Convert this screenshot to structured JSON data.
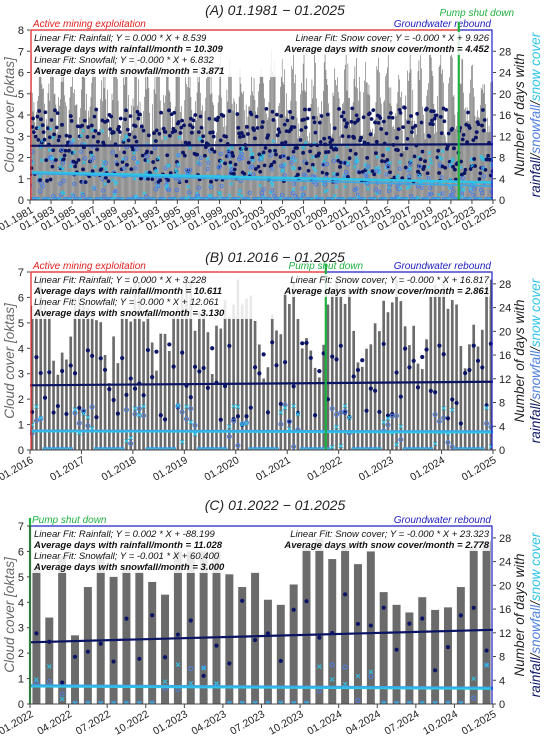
{
  "y2_label": {
    "pre": "Number of days with",
    "rain": "rainfall",
    "sep1": "/",
    "snowfall": "snowfall",
    "sep2": "/",
    "snowcover": "snow cover"
  },
  "colors": {
    "cloud_bar": "#6b6b6b",
    "rainfall": "#0b1464",
    "snowfall": "#4f7fe0",
    "snow_cover": "#2ec4e8",
    "active_mining": "#e02020",
    "pump_shut": "#20b040",
    "rebound": "#2020c0"
  },
  "chart_data": [
    {
      "type": "bar",
      "title": "(A) 01.1981 − 01.2025",
      "ylabel": "Cloud cover [oktas]",
      "ylim": [
        0,
        8
      ],
      "yticks": [
        0,
        1,
        2,
        3,
        4,
        5,
        6,
        7,
        8
      ],
      "y2lim": [
        0,
        32
      ],
      "y2ticks": [
        0,
        4,
        8,
        12,
        16,
        20,
        24,
        28
      ],
      "xlim": [
        1981.0,
        2025.0
      ],
      "xticks": [
        "01.1981",
        "01.1983",
        "01.1985",
        "01.1987",
        "01.1989",
        "01.1991",
        "01.1993",
        "01.1995",
        "01.1997",
        "01.1999",
        "01.2001",
        "01.2003",
        "01.2005",
        "01.2007",
        "01.2009",
        "01.2011",
        "01.2013",
        "01.2015",
        "01.2017",
        "01.2019",
        "01.2021",
        "01.2023",
        "01.2025"
      ],
      "phases": {
        "active_mining": "Active mining exploitation",
        "pump_shut": "Pump shut down",
        "rebound": "Groundwater rebound",
        "pump_shut_x": 2021.75
      },
      "annotations": {
        "rain_fit": "Linear Fit: Rainfall; Y = 0.000 * X + 8.539",
        "rain_avg": "Average days with rainfall/month = 10.309",
        "snowfall_fit": "Linear Fit: Snowfall; Y = -0.000 * X + 6.832",
        "snowfall_avg": "Average days with snowfall/month = 3.871",
        "snowcover_fit": "Linear Fit: Snow cover; Y = -0.000 * X + 9.926",
        "snowcover_avg": "Average days with snow cover/month = 4.452"
      },
      "series": [
        {
          "name": "Cloud cover",
          "x_start": 1981.0,
          "n_months": 528,
          "mean": 4.8,
          "amplitude": 1.4
        },
        {
          "name": "Rainfall",
          "trend_days": [
            10.2,
            10.5
          ]
        },
        {
          "name": "Snowfall",
          "trend_days": [
            5.0,
            2.6
          ]
        },
        {
          "name": "Snow cover",
          "trend_days": [
            5.2,
            3.3
          ]
        }
      ]
    },
    {
      "type": "bar",
      "title": "(B) 01.2016 − 01.2025",
      "ylabel": "Cloud cover [oktas]",
      "ylim": [
        0,
        7
      ],
      "yticks": [
        0,
        1,
        2,
        3,
        4,
        5,
        6,
        7
      ],
      "y2lim": [
        0,
        30
      ],
      "y2ticks": [
        0,
        4,
        8,
        12,
        16,
        20,
        24,
        28
      ],
      "xlim": [
        2016.0,
        2025.0
      ],
      "xticks": [
        "01.2016",
        "01.2017",
        "01.2018",
        "01.2019",
        "01.2020",
        "01.2021",
        "01.2022",
        "01.2023",
        "01.2024",
        "01.2025"
      ],
      "phases": {
        "active_mining": "Active mining exploitation",
        "pump_shut": "Pump shut down",
        "rebound": "Groundwater rebound",
        "pump_shut_x": 2021.75
      },
      "annotations": {
        "rain_fit": "Linear Fit: Rainfall; Y = 0.000 * X + 3.228",
        "rain_avg": "Average days with rainfall/month = 10.611",
        "snowfall_fit": "Linear Fit: Snowfall; Y = -0.000 * X + 12.061",
        "snowfall_avg": "Average days with snowfall/month = 3.130",
        "snowcover_fit": "Linear Fit: Snow cover; Y = -0.000 * X + 16.817",
        "snowcover_avg": "Average days with snow cover/month = 2.861"
      },
      "series": [
        {
          "name": "Cloud cover",
          "x_start": 2016.0,
          "n_months": 108,
          "mean": 5.0,
          "amplitude": 1.3
        },
        {
          "name": "Rainfall",
          "trend_days": [
            10.9,
            11.5
          ]
        },
        {
          "name": "Snowfall",
          "trend_days": [
            3.3,
            3.2
          ]
        },
        {
          "name": "Snow cover",
          "trend_days": [
            3.2,
            3.0
          ]
        }
      ]
    },
    {
      "type": "bar",
      "title": "(C) 01.2022 − 01.2025",
      "ylabel": "Cloud cover [oktas]",
      "ylim": [
        0,
        7
      ],
      "yticks": [
        0,
        1,
        2,
        3,
        4,
        5,
        6,
        7
      ],
      "y2lim": [
        0,
        30
      ],
      "y2ticks": [
        0,
        4,
        8,
        12,
        16,
        20,
        24,
        28
      ],
      "xlim": [
        2022.0,
        2025.0
      ],
      "xticks": [
        "01.2022",
        "04.2022",
        "07.2022",
        "10.2022",
        "01.2023",
        "04.2023",
        "07.2023",
        "10.2023",
        "01.2024",
        "04.2024",
        "07.2024",
        "10.2024",
        "01.2025"
      ],
      "phases": {
        "pump_shut": "Pump shut down",
        "rebound": "Groundwater rebound",
        "pump_shut_x": 2022.0
      },
      "annotations": {
        "rain_fit": "Linear Fit: Rainfall; Y = 0.002 * X + -88.199",
        "rain_avg": "Average days with rainfall/month = 11.028",
        "snowfall_fit": "Linear Fit: Snowfall; Y = -0.001 * X + 60.400",
        "snowfall_avg": "Average days with snowfall/month = 3.000",
        "snowcover_fit": "Linear Fit: Snow cover; Y = -0.000 * X + 23.323",
        "snowcover_avg": "Average days with snow cover/month = 2.778"
      },
      "series": [
        {
          "name": "Cloud cover",
          "x_start": 2022.0,
          "values": [
            5.3,
            3.4,
            5.8,
            2.7,
            4.6,
            5.8,
            5.0,
            5.4,
            5.2,
            4.8,
            4.3,
            6.0,
            6.0,
            6.0,
            6.0,
            5.1,
            4.6,
            5.2,
            4.1,
            3.9,
            4.7,
            6.2,
            6.5,
            5.7,
            6.2,
            5.5,
            6.0,
            4.4,
            3.9,
            3.6,
            4.2,
            3.7,
            3.8,
            4.6,
            6.2,
            6.4
          ]
        },
        {
          "name": "Rainfall",
          "trend_days": [
            10.4,
            12.5
          ]
        },
        {
          "name": "Snowfall",
          "trend_days": [
            3.2,
            2.8
          ]
        },
        {
          "name": "Snow cover",
          "trend_days": [
            3.0,
            2.6
          ]
        }
      ]
    }
  ]
}
